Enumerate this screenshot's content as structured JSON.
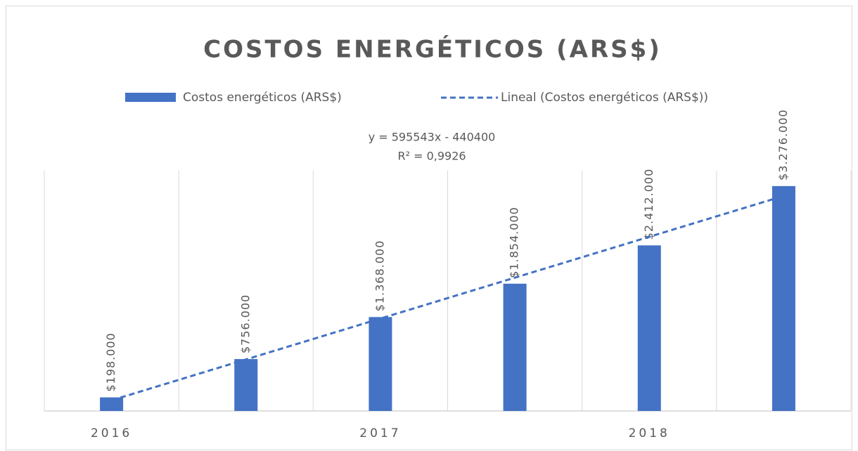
{
  "chart_data": {
    "type": "bar",
    "title": "COSTOS ENERGÉTICOS (ARS$)",
    "categories": [
      "2016",
      null,
      "2017",
      null,
      "2018",
      null
    ],
    "series": [
      {
        "name": "Costos energéticos (ARS$)",
        "color": "#4472c4",
        "values": [
          198000,
          756000,
          1368000,
          1854000,
          2412000,
          3276000
        ],
        "value_labels": [
          "$198.000",
          "$756.000",
          "$1.368.000",
          "$1.854.000",
          "$2.412.000",
          "$3.276.000"
        ]
      },
      {
        "name": "Lineal (Costos energéticos (ARS$))",
        "type": "line",
        "dashed": true,
        "color": "#4472c4",
        "values": [
          155143,
          750686,
          1346229,
          1941772,
          2537315,
          3132858
        ]
      }
    ],
    "annotations": [
      "y = 595543x - 440400",
      "R² = 0,9926"
    ],
    "ylim": [
      0,
      3500000
    ],
    "grid": true
  }
}
